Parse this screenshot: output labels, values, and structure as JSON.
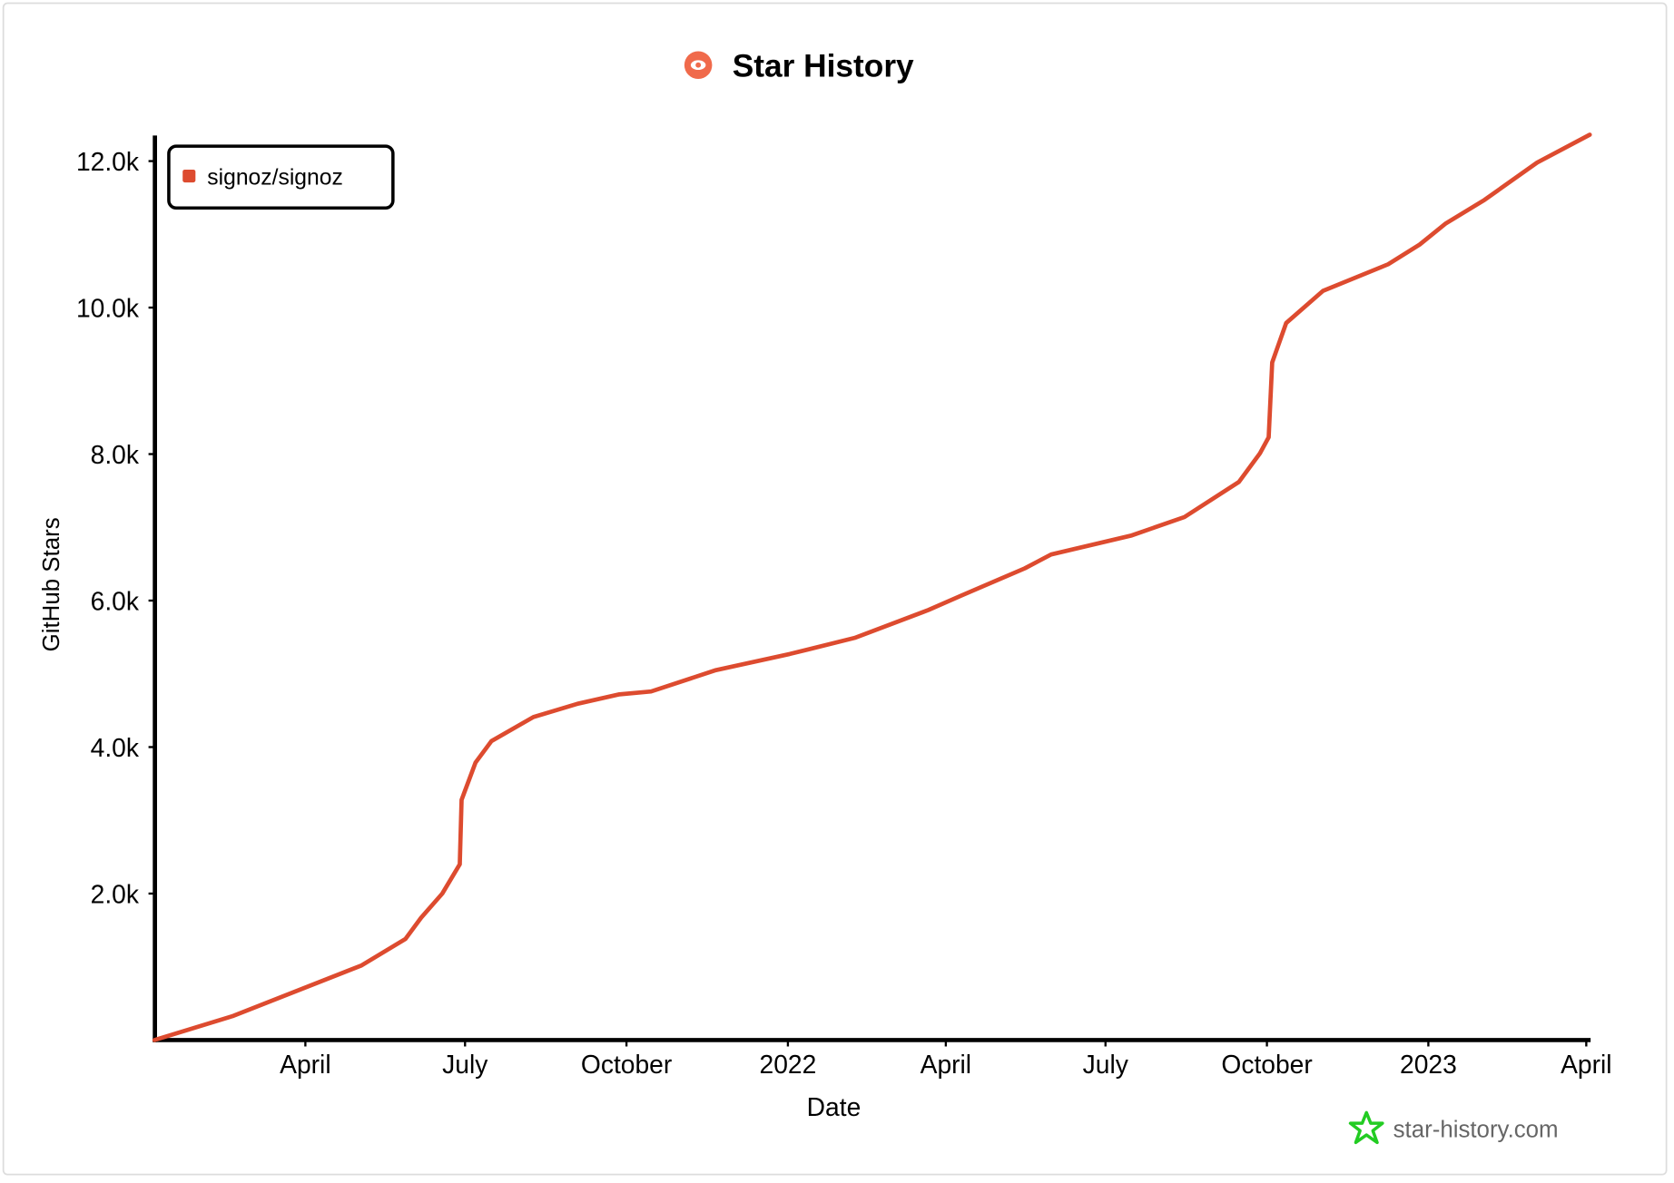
{
  "chart_data": {
    "type": "line",
    "title": "Star History",
    "xlabel": "Date",
    "ylabel": "GitHub Stars",
    "ylim": [
      0,
      12400
    ],
    "grid": false,
    "legend_position": "top-left",
    "watermark": "star-history.com",
    "colors": {
      "series": "#dd4b2f",
      "logo": "#f06a4b",
      "watermark_star": "#22cc22",
      "watermark_text": "#666666"
    },
    "y_ticks": [
      {
        "value": 2000,
        "label": "2.0k"
      },
      {
        "value": 4000,
        "label": "4.0k"
      },
      {
        "value": 6000,
        "label": "6.0k"
      },
      {
        "value": 8000,
        "label": "8.0k"
      },
      {
        "value": 10000,
        "label": "10.0k"
      },
      {
        "value": 12000,
        "label": "12.0k"
      }
    ],
    "x_ticks": [
      {
        "date": "2021-04-01",
        "label": "April"
      },
      {
        "date": "2021-07-01",
        "label": "July"
      },
      {
        "date": "2021-10-01",
        "label": "October"
      },
      {
        "date": "2022-01-01",
        "label": "2022"
      },
      {
        "date": "2022-04-01",
        "label": "April"
      },
      {
        "date": "2022-07-01",
        "label": "July"
      },
      {
        "date": "2022-10-01",
        "label": "October"
      },
      {
        "date": "2023-01-01",
        "label": "2023"
      },
      {
        "date": "2023-04-01",
        "label": "April"
      }
    ],
    "series": [
      {
        "name": "signoz/signoz",
        "points": [
          [
            "2021-01-05",
            0
          ],
          [
            "2021-02-19",
            330
          ],
          [
            "2021-05-03",
            1020
          ],
          [
            "2021-05-28",
            1380
          ],
          [
            "2021-06-06",
            1670
          ],
          [
            "2021-06-18",
            2000
          ],
          [
            "2021-06-28",
            2400
          ],
          [
            "2021-06-29",
            3280
          ],
          [
            "2021-07-07",
            3790
          ],
          [
            "2021-07-16",
            4080
          ],
          [
            "2021-08-09",
            4410
          ],
          [
            "2021-09-03",
            4590
          ],
          [
            "2021-09-27",
            4720
          ],
          [
            "2021-10-15",
            4760
          ],
          [
            "2021-11-21",
            5050
          ],
          [
            "2022-01-02",
            5270
          ],
          [
            "2022-02-08",
            5490
          ],
          [
            "2022-03-22",
            5870
          ],
          [
            "2022-04-10",
            6070
          ],
          [
            "2022-05-16",
            6440
          ],
          [
            "2022-05-31",
            6630
          ],
          [
            "2022-07-16",
            6890
          ],
          [
            "2022-08-15",
            7140
          ],
          [
            "2022-09-15",
            7620
          ],
          [
            "2022-09-27",
            8010
          ],
          [
            "2022-10-02",
            8230
          ],
          [
            "2022-10-04",
            9250
          ],
          [
            "2022-10-12",
            9790
          ],
          [
            "2022-11-02",
            10230
          ],
          [
            "2022-12-09",
            10590
          ],
          [
            "2022-12-27",
            10860
          ],
          [
            "2023-01-11",
            11150
          ],
          [
            "2023-02-02",
            11470
          ],
          [
            "2023-03-04",
            11980
          ],
          [
            "2023-04-03",
            12360
          ]
        ]
      }
    ]
  }
}
